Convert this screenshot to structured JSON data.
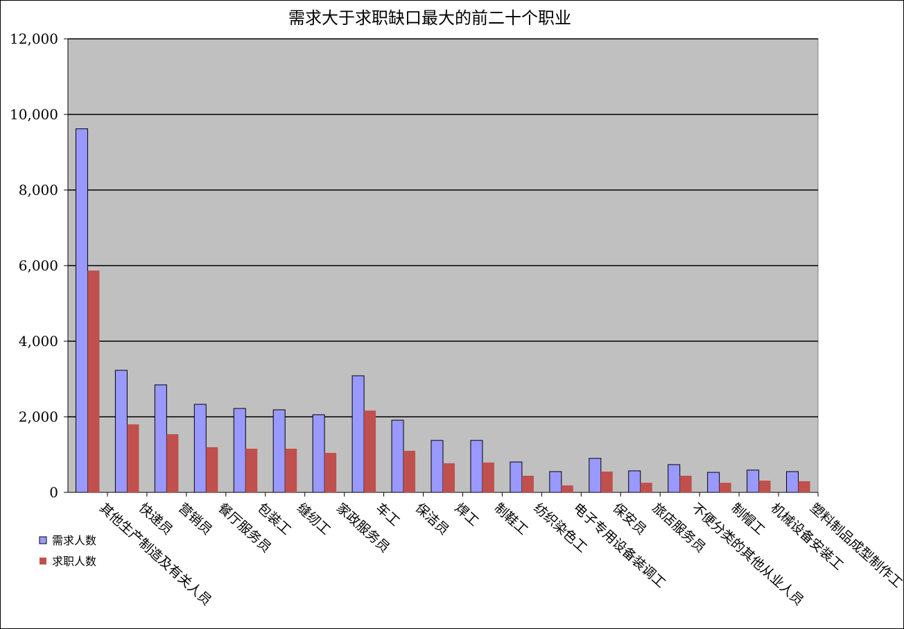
{
  "chart_data": {
    "type": "bar",
    "title": "需求大于求职缺口最大的前二十个职业",
    "categories": [
      "其他生产制造及有关人员",
      "快递员",
      "营销员",
      "餐厅服务员",
      "包装工",
      "缝纫工",
      "家政服务员",
      "车工",
      "保洁员",
      "焊工",
      "制鞋工",
      "纺织染色工",
      "电子专用设备装调工",
      "保安员",
      "旅店服务员",
      "不便分类的其他从业人员",
      "制帽工",
      "机械设备安装工",
      "塑料制品成型制作工"
    ],
    "series": [
      {
        "name": "需求人数",
        "color": "#9999FF",
        "values": [
          9620,
          3230,
          2845,
          2330,
          2220,
          2185,
          2055,
          3085,
          1910,
          1375,
          1375,
          805,
          550,
          900,
          570,
          735,
          530,
          590,
          550
        ]
      },
      {
        "name": "求职人数",
        "color": "#C0504D",
        "values": [
          5870,
          1800,
          1540,
          1195,
          1155,
          1155,
          1045,
          2165,
          1100,
          770,
          790,
          440,
          185,
          550,
          255,
          440,
          255,
          310,
          295
        ]
      }
    ],
    "ylim": [
      0,
      12000
    ],
    "yticks": [
      "0",
      "2,000",
      "4,000",
      "6,000",
      "8,000",
      "10,000",
      "12,000"
    ],
    "grid": true,
    "plot_background": "#C0C0C0",
    "legend_position": "bottom-left"
  }
}
